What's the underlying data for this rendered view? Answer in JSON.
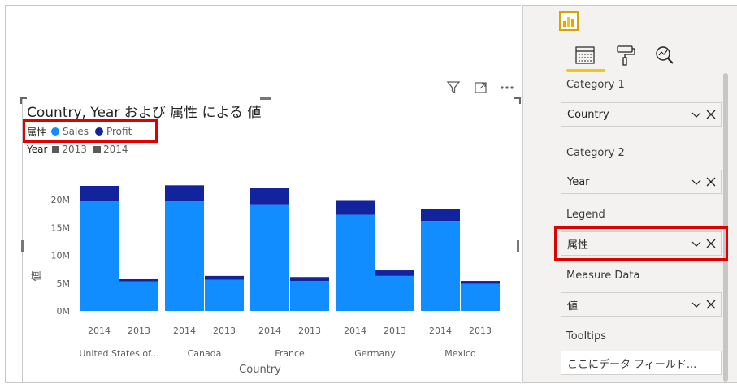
{
  "visual": {
    "title": "Country, Year および 属性 による 値",
    "legend": {
      "title": "属性",
      "items": [
        {
          "label": "Sales",
          "color": "#118dff"
        },
        {
          "label": "Profit",
          "color": "#12239e"
        }
      ]
    },
    "year_legend": {
      "title": "Year",
      "items": [
        {
          "label": "2013",
          "color": "#5a5a5a"
        },
        {
          "label": "2014",
          "color": "#5a5a5a"
        }
      ]
    },
    "toolbar_icons": [
      "filter-icon",
      "focus-mode-icon",
      "more-options-icon"
    ]
  },
  "chart_data": {
    "type": "bar",
    "stacked": true,
    "title": "Country, Year および 属性 による 値",
    "xlabel": "Country",
    "ylabel": "値",
    "yticks": [
      "0M",
      "5M",
      "10M",
      "15M",
      "20M"
    ],
    "ylim": [
      0,
      24000000
    ],
    "groups": [
      "United States of...",
      "Canada",
      "France",
      "Germany",
      "Mexico"
    ],
    "categories": [
      {
        "group": "United States of...",
        "year": "2014"
      },
      {
        "group": "United States of...",
        "year": "2013"
      },
      {
        "group": "Canada",
        "year": "2014"
      },
      {
        "group": "Canada",
        "year": "2013"
      },
      {
        "group": "France",
        "year": "2014"
      },
      {
        "group": "France",
        "year": "2013"
      },
      {
        "group": "Germany",
        "year": "2014"
      },
      {
        "group": "Germany",
        "year": "2013"
      },
      {
        "group": "Mexico",
        "year": "2014"
      },
      {
        "group": "Mexico",
        "year": "2013"
      }
    ],
    "series": [
      {
        "name": "Sales",
        "color": "#118dff",
        "values": [
          19700000,
          5300000,
          19700000,
          5600000,
          19200000,
          5400000,
          17300000,
          6300000,
          16200000,
          4900000
        ]
      },
      {
        "name": "Profit",
        "color": "#12239e",
        "values": [
          2800000,
          400000,
          2900000,
          700000,
          3000000,
          700000,
          2500000,
          1000000,
          2200000,
          500000
        ]
      }
    ],
    "grid": false,
    "legend_position": "top-left"
  },
  "pane": {
    "tabs": [
      {
        "name": "fields",
        "icon": "fields-icon"
      },
      {
        "name": "format",
        "icon": "paint-roller-icon"
      },
      {
        "name": "analytics",
        "icon": "analytics-icon"
      }
    ],
    "wells": [
      {
        "label": "Category 1",
        "value": "Country"
      },
      {
        "label": "Category 2",
        "value": "Year"
      },
      {
        "label": "Legend",
        "value": "属性"
      },
      {
        "label": "Measure Data",
        "value": "値"
      },
      {
        "label": "Tooltips",
        "placeholder": "ここにデータ フィールド..."
      }
    ]
  }
}
